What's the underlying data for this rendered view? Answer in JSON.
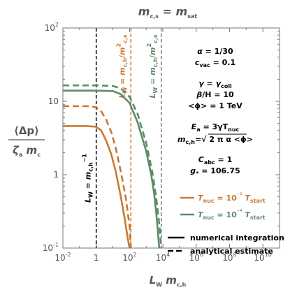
{
  "chart_data": {
    "type": "line",
    "title": "m_{c,s} = m_sat",
    "ylabel": "⟨Δp⟩ / ζ_a m_c",
    "xlabel": "L_W m_{c,h}",
    "xscale": "log",
    "yscale": "log",
    "xlim": [
      0.01,
      100000000000
    ],
    "ylim": [
      0.1,
      100
    ],
    "xtick_exponents": [
      -2,
      0,
      2,
      4,
      6,
      8,
      10
    ],
    "ytick_labels": [
      "10⁻¹",
      "1",
      "10",
      "10²"
    ],
    "ytick_values": [
      0.1,
      1,
      10,
      100
    ],
    "parameters": [
      "α = 1/30",
      "c_vac = 0.1",
      "γ = γ_coll",
      "β/H = 10",
      "<ϕ> = 1 TeV",
      "E_a = 3γT_nuc",
      "m_{c,h} = √(2πα <ϕ>)",
      "C_abc = 1",
      "g_* = 106.75"
    ],
    "vertical_lines": [
      {
        "x": 1,
        "label": "L_W = m_{c,h}^{-1}",
        "color": "#000000"
      },
      {
        "x": 120,
        "label": "L_W = m_{c,h}/m_{c,s}^2",
        "color": "#C87A30"
      },
      {
        "x": 8000,
        "label": "L_W = m_{c,h}/m_{c,s}^2",
        "color": "#5E8B6A"
      }
    ],
    "series": [
      {
        "name": "T_nuc = 10⁻² T_start",
        "style": "numerical",
        "color": "#C87A30",
        "x": [
          0.01,
          0.03,
          0.1,
          0.3,
          1,
          2,
          4,
          8,
          15,
          30,
          50,
          80,
          100
        ],
        "y": [
          4.6,
          4.6,
          4.6,
          4.6,
          4.5,
          4.0,
          2.9,
          1.9,
          1.1,
          0.5,
          0.26,
          0.13,
          0.1
        ]
      },
      {
        "name": "T_nuc = 10⁻² T_start",
        "style": "analytical",
        "color": "#C87A30",
        "x": [
          0.01,
          0.03,
          0.1,
          0.3,
          1,
          2,
          4,
          8,
          15,
          30,
          60,
          100,
          120
        ],
        "y": [
          8.6,
          8.6,
          8.6,
          8.6,
          8.3,
          7.3,
          5.6,
          3.8,
          2.3,
          1.1,
          0.48,
          0.2,
          0.1
        ]
      },
      {
        "name": "T_nuc = 10⁻⁴ T_start",
        "style": "numerical",
        "color": "#5E8B6A",
        "x": [
          0.01,
          0.1,
          1,
          10,
          30,
          100,
          300,
          1000,
          2000,
          3000,
          4000,
          5000,
          6000
        ],
        "y": [
          14,
          14,
          14,
          13.8,
          12.5,
          9.5,
          5.2,
          2.1,
          1.0,
          0.55,
          0.3,
          0.17,
          0.1
        ]
      },
      {
        "name": "T_nuc = 10⁻⁴ T_start",
        "style": "analytical",
        "color": "#5E8B6A",
        "x": [
          0.01,
          0.1,
          1,
          10,
          30,
          100,
          300,
          1000,
          2500,
          4000,
          6000,
          8000
        ],
        "y": [
          16.5,
          16.5,
          16.5,
          16.2,
          15,
          11.5,
          6.8,
          2.7,
          1.0,
          0.48,
          0.22,
          0.1
        ]
      }
    ],
    "legend": {
      "colors": [
        {
          "label": "T_nuc = 10⁻² T_start",
          "color": "#C87A30"
        },
        {
          "label": "T_nuc = 10⁻⁴ T_start",
          "color": "#5E8B6A"
        }
      ],
      "styles": [
        {
          "label": "numerical integration",
          "style": "solid"
        },
        {
          "label": "analytical estimate",
          "style": "dashed"
        }
      ],
      "placement": "bottom-right"
    },
    "grid": false
  }
}
